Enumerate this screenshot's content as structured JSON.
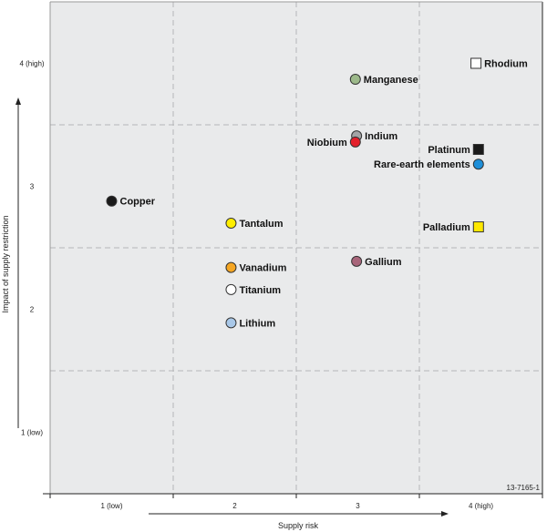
{
  "chart_data": {
    "type": "scatter",
    "xlabel": "Supply risk",
    "ylabel": "Impact of supply restriction",
    "xlim": [
      0.5,
      4.5
    ],
    "ylim": [
      0.5,
      4.5
    ],
    "x_ticks": [
      {
        "value": 1,
        "label": "1 (low)"
      },
      {
        "value": 2,
        "label": "2"
      },
      {
        "value": 3,
        "label": "3"
      },
      {
        "value": 4,
        "label": "4 (high)"
      }
    ],
    "y_ticks": [
      {
        "value": 1,
        "label": "1 (low)"
      },
      {
        "value": 2,
        "label": "2"
      },
      {
        "value": 3,
        "label": "3"
      },
      {
        "value": 4,
        "label": "4 (high)"
      }
    ],
    "grid": true,
    "grid_style": "dashed at cell boundaries",
    "background": "#e9eaeb",
    "annotation": "13-7165-1",
    "points": [
      {
        "label": "Copper",
        "x": 1.0,
        "y": 2.88,
        "shape": "circle",
        "color": "#1a1a1a",
        "label_side": "right"
      },
      {
        "label": "Tantalum",
        "x": 1.97,
        "y": 2.7,
        "shape": "circle",
        "color": "#ffee00",
        "label_side": "right"
      },
      {
        "label": "Vanadium",
        "x": 1.97,
        "y": 2.34,
        "shape": "circle",
        "color": "#f5a623",
        "label_side": "right"
      },
      {
        "label": "Titanium",
        "x": 1.97,
        "y": 2.16,
        "shape": "circle",
        "color": "#ffffff",
        "label_side": "right"
      },
      {
        "label": "Lithium",
        "x": 1.97,
        "y": 1.89,
        "shape": "circle",
        "color": "#a9c8e8",
        "label_side": "right"
      },
      {
        "label": "Manganese",
        "x": 2.98,
        "y": 3.87,
        "shape": "circle",
        "color": "#9cb98a",
        "label_side": "right"
      },
      {
        "label": "Indium",
        "x": 2.99,
        "y": 3.41,
        "shape": "circle",
        "color": "#a3a4a6",
        "label_side": "right"
      },
      {
        "label": "Niobium",
        "x": 2.98,
        "y": 3.36,
        "shape": "circle",
        "color": "#e3202b",
        "label_side": "left"
      },
      {
        "label": "Gallium",
        "x": 2.99,
        "y": 2.39,
        "shape": "circle",
        "color": "#a8657a",
        "label_side": "right"
      },
      {
        "label": "Rhodium",
        "x": 3.96,
        "y": 4.0,
        "shape": "square",
        "color": "#ffffff",
        "label_side": "right"
      },
      {
        "label": "Platinum",
        "x": 3.98,
        "y": 3.3,
        "shape": "square",
        "color": "#1a1a1a",
        "label_side": "left"
      },
      {
        "label": "Rare-earth elements",
        "x": 3.98,
        "y": 3.18,
        "shape": "circle",
        "color": "#1e8fd8",
        "label_side": "left"
      },
      {
        "label": "Palladium",
        "x": 3.98,
        "y": 2.67,
        "shape": "square",
        "color": "#ffe800",
        "label_side": "left"
      }
    ]
  }
}
